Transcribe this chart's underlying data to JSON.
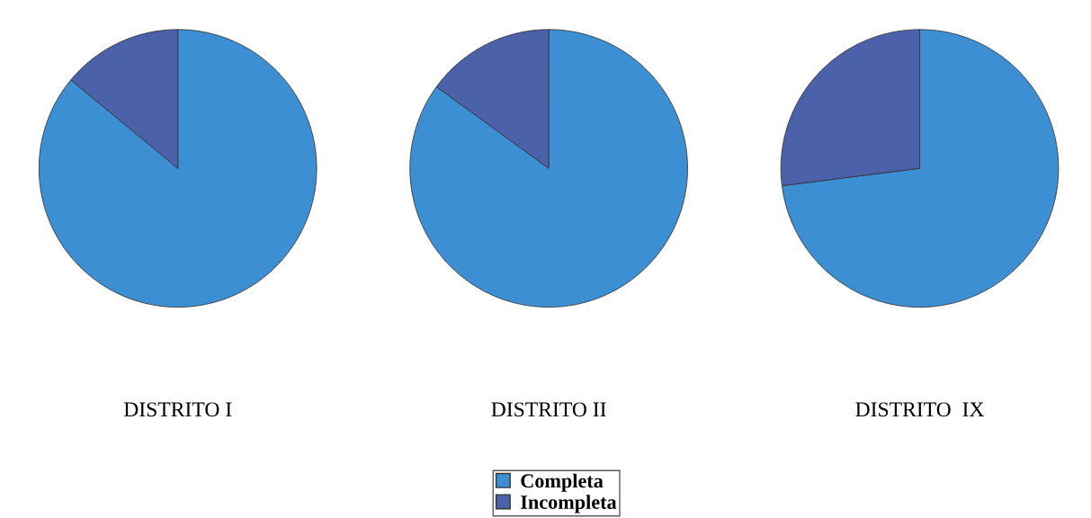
{
  "chart_data": [
    {
      "type": "pie",
      "title": "DISTRITO I",
      "categories": [
        "Completa",
        "Incompleta"
      ],
      "values": [
        86,
        14
      ],
      "colors": [
        "#3b8fd2",
        "#4b62aa"
      ],
      "legend": "bottom"
    },
    {
      "type": "pie",
      "title": "DISTRITO II",
      "categories": [
        null,
        null
      ],
      "values": [
        85,
        15
      ],
      "colors": [
        "#3b8fd2",
        "#4b62aa"
      ]
    },
    {
      "type": "pie",
      "title": "DISTRITO  IX",
      "categories": [
        null,
        null
      ],
      "values": [
        73,
        27
      ],
      "colors": [
        "#3b8fd2",
        "#4b62aa"
      ]
    }
  ]
}
